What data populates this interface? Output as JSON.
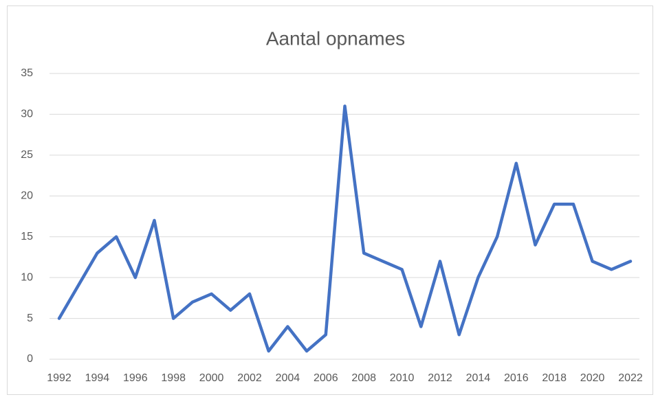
{
  "chart_data": {
    "type": "line",
    "title": "Aantal opnames",
    "categories": [
      "1992",
      null,
      "1994",
      null,
      "1996",
      null,
      "1998",
      null,
      "2000",
      null,
      "2002",
      null,
      "2004",
      null,
      "2006",
      null,
      "2008",
      null,
      "2010",
      null,
      "2012",
      null,
      "2014",
      null,
      "2016",
      null,
      "2018",
      null,
      "2020",
      null,
      "2022"
    ],
    "series": [
      {
        "name": "Aantal opnames",
        "color": "#4472c4",
        "values": [
          5,
          9,
          13,
          15,
          10,
          17,
          5,
          7,
          8,
          6,
          8,
          1,
          4,
          1,
          3,
          31,
          13,
          12,
          11,
          4,
          12,
          3,
          10,
          15,
          24,
          14,
          19,
          19,
          12,
          11,
          12
        ]
      }
    ],
    "ylim": [
      0,
      35
    ],
    "yticks": [
      0,
      5,
      10,
      15,
      20,
      25,
      30,
      35
    ],
    "grid": true
  }
}
